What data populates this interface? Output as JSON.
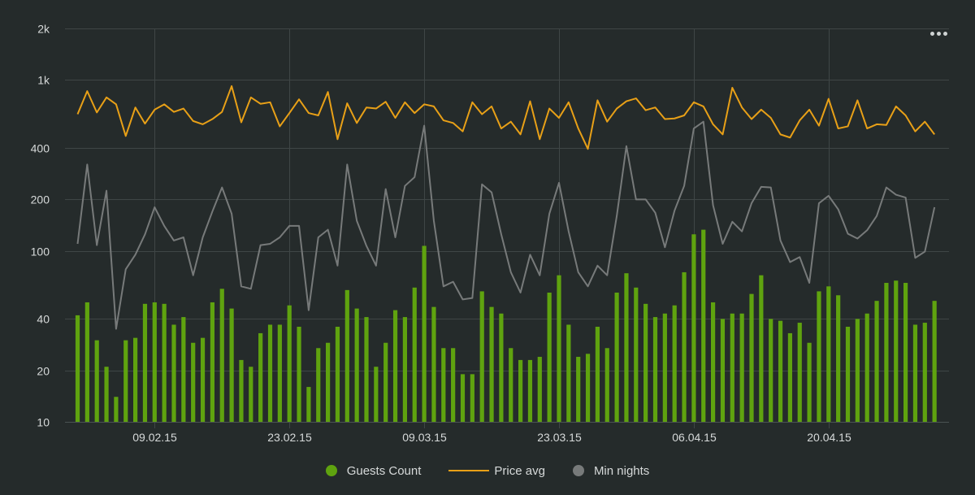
{
  "colors": {
    "background": "#252b2b",
    "guests": "#5fa30f",
    "price": "#e8a017",
    "min_nights": "#777a7a",
    "grid": "#3f4646",
    "text": "#d6d9d9"
  },
  "legend": {
    "guests_label": "Guests Count",
    "price_label": "Price avg",
    "min_nights_label": "Min nights"
  },
  "menu_icon": "three-dots-icon",
  "chart_data": {
    "type": "bar",
    "title": "",
    "xlabel": "",
    "ylabel": "",
    "y_scale": "log",
    "ylim": [
      10,
      2000
    ],
    "y_ticks": [
      10,
      20,
      40,
      100,
      200,
      400,
      1000,
      2000
    ],
    "y_tick_labels": [
      "10",
      "20",
      "40",
      "100",
      "200",
      "400",
      "1k",
      "2k"
    ],
    "x_ticks": [
      {
        "label": "09.02.15",
        "index": 8
      },
      {
        "label": "23.02.15",
        "index": 22
      },
      {
        "label": "09.03.15",
        "index": 36
      },
      {
        "label": "23.03.15",
        "index": 50
      },
      {
        "label": "06.04.15",
        "index": 64
      },
      {
        "label": "20.04.15",
        "index": 78
      }
    ],
    "grid": true,
    "legend_position": "bottom-center",
    "series": [
      {
        "name": "Guests Count",
        "type": "bar",
        "values": [
          42,
          50,
          30,
          21,
          14,
          30,
          31,
          49,
          50,
          49,
          37,
          41,
          29,
          31,
          50,
          60,
          46,
          23,
          21,
          33,
          37,
          37,
          48,
          36,
          16,
          27,
          29,
          36,
          59,
          46,
          41,
          21,
          29,
          45,
          41,
          61,
          107,
          47,
          27,
          27,
          19,
          19,
          58,
          47,
          43,
          27,
          23,
          23,
          24,
          57,
          72,
          37,
          24,
          25,
          36,
          27,
          57,
          74,
          61,
          49,
          41,
          43,
          48,
          75,
          125,
          133,
          50,
          40,
          43,
          43,
          56,
          72,
          40,
          39,
          33,
          38,
          29,
          58,
          62,
          55,
          36,
          40,
          43,
          51,
          65,
          67,
          65,
          37,
          38,
          51
        ]
      },
      {
        "name": "Price avg",
        "type": "line",
        "values": [
          630,
          860,
          645,
          790,
          720,
          470,
          690,
          555,
          670,
          720,
          650,
          680,
          575,
          550,
          590,
          650,
          920,
          565,
          790,
          725,
          740,
          535,
          640,
          770,
          640,
          620,
          850,
          450,
          730,
          560,
          690,
          680,
          745,
          600,
          740,
          640,
          720,
          700,
          580,
          560,
          500,
          740,
          630,
          700,
          520,
          570,
          480,
          750,
          450,
          680,
          600,
          740,
          520,
          395,
          760,
          570,
          680,
          750,
          780,
          665,
          690,
          590,
          595,
          620,
          740,
          700,
          550,
          480,
          900,
          690,
          590,
          670,
          600,
          480,
          460,
          580,
          670,
          540,
          775,
          520,
          535,
          760,
          520,
          550,
          545,
          700,
          620,
          500,
          570,
          480
        ]
      },
      {
        "name": "Min nights",
        "type": "line",
        "values": [
          110,
          320,
          108,
          225,
          35,
          78,
          95,
          125,
          180,
          140,
          115,
          120,
          72,
          120,
          170,
          235,
          165,
          62,
          60,
          108,
          110,
          120,
          140,
          140,
          45,
          120,
          133,
          82,
          320,
          150,
          107,
          82,
          230,
          120,
          240,
          270,
          540,
          150,
          62,
          66,
          52,
          53,
          245,
          220,
          125,
          75,
          57,
          95,
          72,
          165,
          250,
          130,
          75,
          62,
          82,
          72,
          160,
          410,
          200,
          200,
          167,
          105,
          172,
          240,
          520,
          570,
          185,
          110,
          148,
          130,
          190,
          237,
          235,
          115,
          86,
          92,
          65,
          190,
          210,
          175,
          126,
          118,
          132,
          160,
          235,
          213,
          205,
          91,
          99,
          180
        ]
      }
    ]
  }
}
